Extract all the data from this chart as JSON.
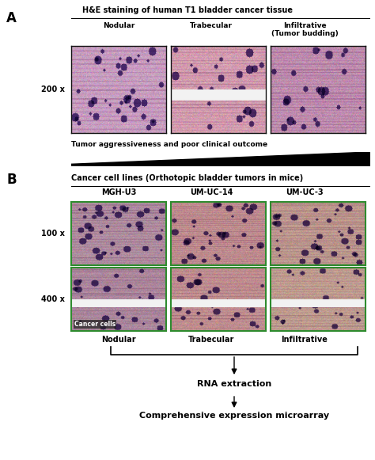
{
  "title_A": "H&E staining of human T1 bladder cancer tissue",
  "panel_A_label": "A",
  "panel_B_label": "B",
  "col_labels_A": [
    "Nodular",
    "Trabecular",
    "Infiltrative\n(Tumor budding)"
  ],
  "col_labels_B": [
    "MGH-U3",
    "UM-UC-14",
    "UM-UC-3"
  ],
  "mag_200": "200 x",
  "mag_100": "100 x",
  "mag_400": "400 x",
  "growth_label": "Tumor aggressiveness and poor clinical outcome",
  "title_B": "Cancer cell lines (Orthotopic bladder tumors in mice)",
  "row_labels_B": [
    "Nodular",
    "Trabecular",
    "Infiltrative"
  ],
  "cancer_cells_label": "Cancer cells",
  "rna_label": "RNA extraction",
  "array_label": "Comprehensive expression microarray",
  "bg_color": "#ffffff",
  "img_border_color_A": "#111111",
  "img_border_color_B": "#2e8b2e",
  "fig_w": 4.74,
  "fig_h": 5.81,
  "dpi": 100
}
